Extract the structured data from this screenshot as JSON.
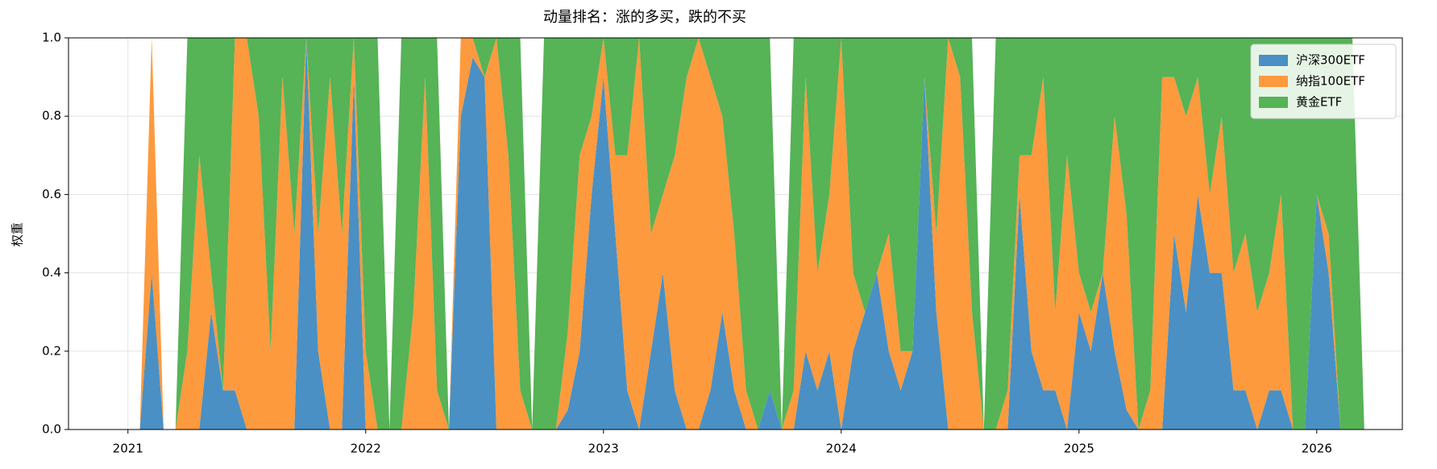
{
  "chart_data": {
    "type": "stackedarea",
    "title": "动量排名：涨的多买，跌的不买",
    "ylabel": "权重",
    "x": [
      2021.05,
      2021.1,
      2021.15,
      2021.2,
      2021.25,
      2021.3,
      2021.35,
      2021.4,
      2021.45,
      2021.5,
      2021.55,
      2021.6,
      2021.65,
      2021.7,
      2021.75,
      2021.8,
      2021.85,
      2021.9,
      2021.95,
      2022.0,
      2022.05,
      2022.1,
      2022.15,
      2022.2,
      2022.25,
      2022.3,
      2022.35,
      2022.4,
      2022.45,
      2022.5,
      2022.55,
      2022.6,
      2022.65,
      2022.7,
      2022.75,
      2022.8,
      2022.85,
      2022.9,
      2022.95,
      2023.0,
      2023.05,
      2023.1,
      2023.15,
      2023.2,
      2023.25,
      2023.3,
      2023.35,
      2023.4,
      2023.45,
      2023.5,
      2023.55,
      2023.6,
      2023.65,
      2023.7,
      2023.75,
      2023.8,
      2023.85,
      2023.9,
      2023.95,
      2024.0,
      2024.05,
      2024.1,
      2024.15,
      2024.2,
      2024.25,
      2024.3,
      2024.35,
      2024.4,
      2024.45,
      2024.5,
      2024.55,
      2024.6,
      2024.65,
      2024.7,
      2024.75,
      2024.8,
      2024.85,
      2024.9,
      2024.95,
      2025.0,
      2025.05,
      2025.1,
      2025.15,
      2025.2,
      2025.25,
      2025.3,
      2025.35,
      2025.4,
      2025.45,
      2025.5,
      2025.55,
      2025.6,
      2025.65,
      2025.7,
      2025.75,
      2025.8,
      2025.85,
      2025.9,
      2025.95,
      2026.0,
      2026.05,
      2026.1,
      2026.15,
      2026.2
    ],
    "series": [
      {
        "name": "沪深300ETF",
        "color": "#4a90c4",
        "values": [
          0,
          0.4,
          0,
          0,
          0,
          0,
          0.3,
          0.1,
          0.1,
          0,
          0,
          0,
          0,
          0,
          1,
          0.2,
          0,
          0,
          0.9,
          0,
          0,
          0,
          0,
          0,
          0,
          0,
          0,
          0.8,
          0.95,
          0.9,
          0,
          0,
          0,
          0,
          0,
          0,
          0.05,
          0.2,
          0.6,
          0.9,
          0.5,
          0.1,
          0,
          0.2,
          0.4,
          0.1,
          0,
          0,
          0.1,
          0.3,
          0.1,
          0,
          0,
          0.1,
          0,
          0,
          0.2,
          0.1,
          0.2,
          0,
          0.2,
          0.3,
          0.4,
          0.2,
          0.1,
          0.2,
          0.9,
          0.3,
          0,
          0,
          0,
          0,
          0,
          0,
          0.6,
          0.2,
          0.1,
          0.1,
          0,
          0.3,
          0.2,
          0.4,
          0.2,
          0.05,
          0,
          0,
          0,
          0.5,
          0.3,
          0.6,
          0.4,
          0.4,
          0.1,
          0.1,
          0,
          0.1,
          0.1,
          0,
          0,
          0.6,
          0.4,
          0,
          0,
          0
        ]
      },
      {
        "name": "纳指100ETF",
        "color": "#fd9a3e",
        "values": [
          0,
          0.6,
          0,
          0,
          0.2,
          0.7,
          0.1,
          0,
          0.9,
          1,
          0.8,
          0.2,
          0.9,
          0.5,
          0,
          0.3,
          0.9,
          0.5,
          0.1,
          0.2,
          0,
          0,
          0,
          0.3,
          0.9,
          0.1,
          0,
          0.2,
          0.05,
          0,
          1,
          0.7,
          0.1,
          0,
          0,
          0,
          0.2,
          0.5,
          0.2,
          0.1,
          0.2,
          0.6,
          1,
          0.3,
          0.2,
          0.6,
          0.9,
          1,
          0.8,
          0.5,
          0.4,
          0.1,
          0,
          0,
          0,
          0.1,
          0.7,
          0.3,
          0.4,
          1,
          0.2,
          0,
          0,
          0.3,
          0.1,
          0,
          0,
          0.2,
          1,
          0.9,
          0.3,
          0,
          0,
          0.1,
          0.1,
          0.5,
          0.8,
          0.2,
          0.7,
          0.1,
          0.1,
          0,
          0.6,
          0.5,
          0,
          0.1,
          0.9,
          0.4,
          0.5,
          0.3,
          0.2,
          0.4,
          0.3,
          0.4,
          0.3,
          0.3,
          0.5,
          0,
          0,
          0,
          0.1,
          0,
          0,
          0
        ]
      },
      {
        "name": "黄金ETF",
        "color": "#56b356",
        "values": [
          0,
          0,
          0,
          0,
          0.8,
          0.3,
          0.6,
          0.9,
          0,
          0,
          0.2,
          0.8,
          0.1,
          0.5,
          0,
          0.5,
          0.1,
          0.5,
          0,
          0.8,
          1,
          0,
          1,
          0.7,
          0.1,
          0.9,
          0,
          0,
          0,
          0.1,
          0,
          0.3,
          0.9,
          0,
          1,
          1,
          0.75,
          0.3,
          0.2,
          0,
          0.3,
          0.3,
          0,
          0.5,
          0.4,
          0.3,
          0.1,
          0,
          0.1,
          0.2,
          0.5,
          0.9,
          1,
          0.9,
          0,
          0.9,
          0.1,
          0.6,
          0.4,
          0,
          0.6,
          0.7,
          0.6,
          0.5,
          0.8,
          0.8,
          0.1,
          0.5,
          0,
          0.1,
          0.7,
          0,
          1,
          0.9,
          0.3,
          0.3,
          0.1,
          0.7,
          0.3,
          0.6,
          0.7,
          0.6,
          0.2,
          0.45,
          1,
          0.9,
          0.1,
          0.1,
          0.2,
          0.1,
          0.4,
          0.2,
          0.6,
          0.5,
          0.7,
          0.6,
          0.4,
          1,
          1,
          0.4,
          0.5,
          1,
          1,
          0
        ]
      }
    ],
    "xlim": [
      2020.75,
      2026.36
    ],
    "xticks": [
      2021,
      2022,
      2023,
      2024,
      2025,
      2026
    ],
    "ylim": [
      0,
      1
    ],
    "yticks": [
      {
        "value": 0,
        "label": "0.0"
      },
      0.2,
      0.4,
      0.6,
      0.8,
      {
        "value": 1,
        "label": "1.0"
      }
    ],
    "grid": true,
    "legend": "upper right"
  }
}
